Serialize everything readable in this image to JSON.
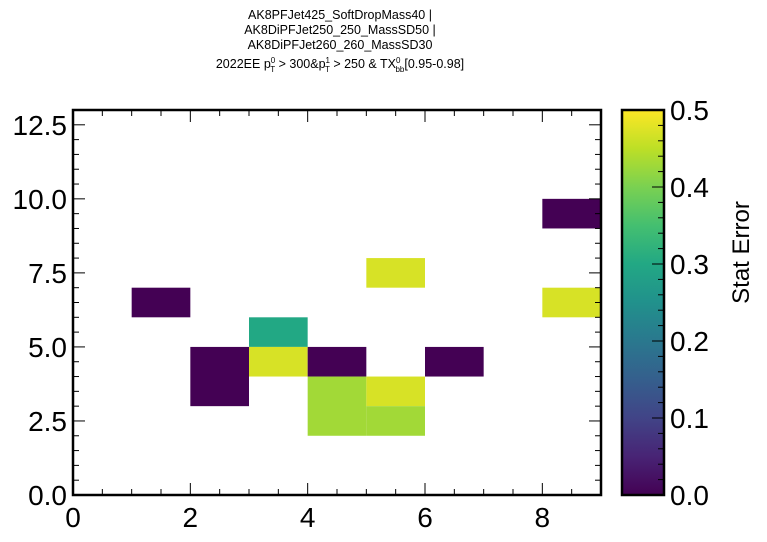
{
  "chart_data": {
    "type": "heatmap",
    "title_lines": [
      "AK8PFJet425_SoftDropMass40 |",
      "AK8DiPFJet250_250_MassSD50 |",
      "AK8DiPFJet260_260_MassSD30"
    ],
    "subtitle": {
      "prefix": "2022EE p",
      "p0_sup": "0",
      "p0_sub": "T",
      "mid1": " > 300&p",
      "p1_sup": "1",
      "p1_sub": "T",
      "mid2": " > 250 & TX",
      "tx_sup": "0",
      "tx_sub": "bb",
      "suffix": "[0.95-0.98]"
    },
    "xlim": [
      0,
      9
    ],
    "ylim": [
      0,
      13
    ],
    "x_ticks": [
      0,
      2,
      4,
      6,
      8
    ],
    "x_tick_labels": [
      "0",
      "2",
      "4",
      "6",
      "8"
    ],
    "y_ticks": [
      0,
      2.5,
      5,
      7.5,
      10,
      12.5
    ],
    "y_tick_labels": [
      "0.0",
      "2.5",
      "5.0",
      "7.5",
      "10.0",
      "12.5"
    ],
    "colorbar": {
      "label": "Stat Error",
      "range": [
        0,
        0.5
      ],
      "ticks": [
        0,
        0.1,
        0.2,
        0.3,
        0.4,
        0.5
      ],
      "tick_labels": [
        "0.0",
        "0.1",
        "0.2",
        "0.3",
        "0.4",
        "0.5"
      ],
      "colormap": "viridis"
    },
    "cells": [
      {
        "x0": 1,
        "x1": 2,
        "y0": 6,
        "y1": 7,
        "value": 0.0
      },
      {
        "x0": 2,
        "x1": 3,
        "y0": 3,
        "y1": 5,
        "value": 0.0
      },
      {
        "x0": 3,
        "x1": 4,
        "y0": 5,
        "y1": 6,
        "value": 0.3
      },
      {
        "x0": 3,
        "x1": 4,
        "y0": 4,
        "y1": 5,
        "value": 0.47
      },
      {
        "x0": 4,
        "x1": 5,
        "y0": 4,
        "y1": 5,
        "value": 0.0
      },
      {
        "x0": 4,
        "x1": 5,
        "y0": 2,
        "y1": 4,
        "value": 0.43
      },
      {
        "x0": 5,
        "x1": 6,
        "y0": 3,
        "y1": 4,
        "value": 0.47
      },
      {
        "x0": 5,
        "x1": 6,
        "y0": 2,
        "y1": 3,
        "value": 0.43
      },
      {
        "x0": 5,
        "x1": 6,
        "y0": 7,
        "y1": 8,
        "value": 0.47
      },
      {
        "x0": 6,
        "x1": 7,
        "y0": 4,
        "y1": 5,
        "value": 0.0
      },
      {
        "x0": 8,
        "x1": 9,
        "y0": 9,
        "y1": 10,
        "value": 0.0
      },
      {
        "x0": 8,
        "x1": 9,
        "y0": 6,
        "y1": 7,
        "value": 0.47
      }
    ]
  }
}
